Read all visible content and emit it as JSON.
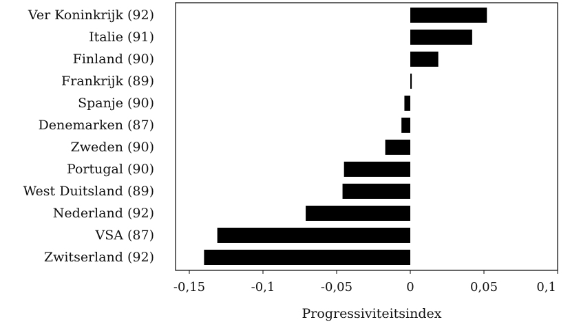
{
  "chart_data": {
    "type": "bar",
    "orientation": "horizontal",
    "categories": [
      "Ver Koninkrijk (92)",
      "Italie (91)",
      "Finland (90)",
      "Frankrijk (89)",
      "Spanje (90)",
      "Denemarken (87)",
      "Zweden (90)",
      "Portugal (90)",
      "West Duitsland (89)",
      "Nederland (92)",
      "VSA (87)",
      "Zwitserland (92)"
    ],
    "values": [
      0.052,
      0.042,
      0.019,
      0.001,
      -0.004,
      -0.006,
      -0.017,
      -0.045,
      -0.046,
      -0.071,
      -0.131,
      -0.14
    ],
    "xlabel": "Progressiviteitsindex",
    "xlim": [
      -0.15,
      0.1
    ],
    "xticks": [
      -0.15,
      -0.1,
      -0.05,
      0,
      0.05,
      0.1
    ],
    "xtick_labels": [
      "-0,15",
      "-0,1",
      "-0,05",
      "0",
      "0,05",
      "0,1"
    ],
    "grid": false,
    "bar_color": "#000000"
  }
}
